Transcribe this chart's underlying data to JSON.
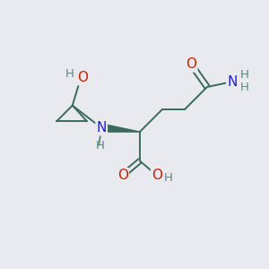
{
  "background_color": "#e8eaf0",
  "bond_color": "#3a6b5a",
  "atom_colors": {
    "O": "#cc2200",
    "N": "#2222cc",
    "H": "#5a8a7a",
    "C": "#3a6b5a"
  }
}
